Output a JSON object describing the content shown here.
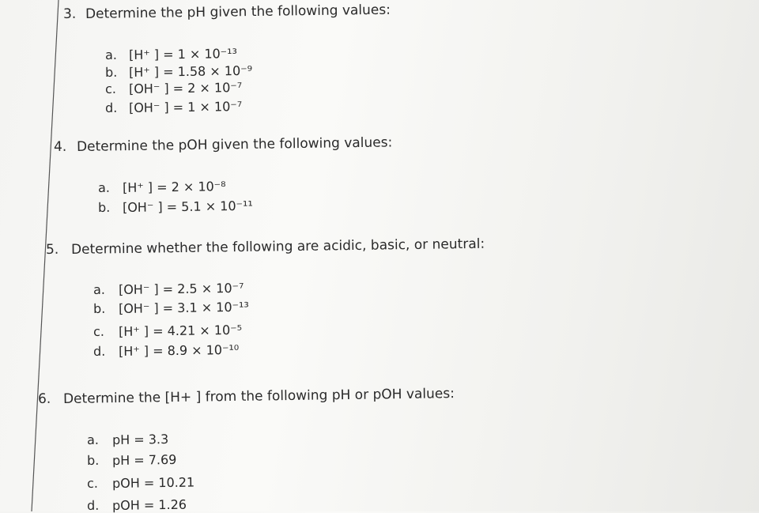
{
  "questions": [
    {
      "number": "3.",
      "prompt": "Determine the pH given the following values:",
      "items": [
        {
          "letter": "a.",
          "text": "[H⁺ ] = 1 × 10⁻¹³"
        },
        {
          "letter": "b.",
          "text": "[H⁺ ] = 1.58 × 10⁻⁹"
        },
        {
          "letter": "c.",
          "text": "[OH⁻ ] = 2 × 10⁻⁷"
        },
        {
          "letter": "d.",
          "text": "[OH⁻ ] = 1 × 10⁻⁷"
        }
      ]
    },
    {
      "number": "4.",
      "prompt": "Determine the pOH given the following values:",
      "items": [
        {
          "letter": "a.",
          "text": "[H⁺ ] = 2 × 10⁻⁸"
        },
        {
          "letter": "b.",
          "text": "[OH⁻ ] = 5.1 × 10⁻¹¹"
        }
      ]
    },
    {
      "number": "5.",
      "prompt": "Determine whether the following are acidic, basic, or neutral:",
      "items": [
        {
          "letter": "a.",
          "text": "[OH⁻ ] = 2.5 × 10⁻⁷"
        },
        {
          "letter": "b.",
          "text": "[OH⁻ ] = 3.1 × 10⁻¹³"
        },
        {
          "letter": "c.",
          "text": "[H⁺ ] = 4.21 × 10⁻⁵"
        },
        {
          "letter": "d.",
          "text": "[H⁺ ] = 8.9 × 10⁻¹⁰"
        }
      ]
    },
    {
      "number": "6.",
      "prompt": "Determine the [H+ ] from the following pH or pOH values:",
      "items": [
        {
          "letter": "a.",
          "text": "pH = 3.3"
        },
        {
          "letter": "b.",
          "text": "pH = 7.69"
        },
        {
          "letter": "c.",
          "text": "pOH = 10.21"
        },
        {
          "letter": "d.",
          "text": "pOH = 1.26"
        }
      ]
    }
  ]
}
